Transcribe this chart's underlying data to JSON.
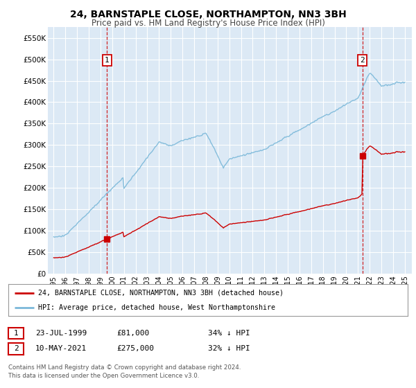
{
  "title": "24, BARNSTAPLE CLOSE, NORTHAMPTON, NN3 3BH",
  "subtitle": "Price paid vs. HM Land Registry's House Price Index (HPI)",
  "title_fontsize": 10,
  "subtitle_fontsize": 8.5,
  "ylabel_ticks": [
    "£0",
    "£50K",
    "£100K",
    "£150K",
    "£200K",
    "£250K",
    "£300K",
    "£350K",
    "£400K",
    "£450K",
    "£500K",
    "£550K"
  ],
  "ytick_values": [
    0,
    50000,
    100000,
    150000,
    200000,
    250000,
    300000,
    350000,
    400000,
    450000,
    500000,
    550000
  ],
  "ylim": [
    0,
    575000
  ],
  "plot_bg_color": "#dce9f5",
  "fig_bg_color": "#ffffff",
  "hpi_color": "#7ab8d9",
  "price_color": "#cc0000",
  "legend_line1": "24, BARNSTAPLE CLOSE, NORTHAMPTON, NN3 3BH (detached house)",
  "legend_line2": "HPI: Average price, detached house, West Northamptonshire",
  "table_row1": [
    "1",
    "23-JUL-1999",
    "£81,000",
    "34% ↓ HPI"
  ],
  "table_row2": [
    "2",
    "10-MAY-2021",
    "£275,000",
    "32% ↓ HPI"
  ],
  "footer": "Contains HM Land Registry data © Crown copyright and database right 2024.\nThis data is licensed under the Open Government Licence v3.0.",
  "xtick_years": [
    1995,
    1996,
    1997,
    1998,
    1999,
    2000,
    2001,
    2002,
    2003,
    2004,
    2005,
    2006,
    2007,
    2008,
    2009,
    2010,
    2011,
    2012,
    2013,
    2014,
    2015,
    2016,
    2017,
    2018,
    2019,
    2020,
    2021,
    2022,
    2023,
    2024,
    2025
  ],
  "yr1": 1999.56,
  "yr2": 2021.37,
  "price1": 81000,
  "price2": 275000
}
